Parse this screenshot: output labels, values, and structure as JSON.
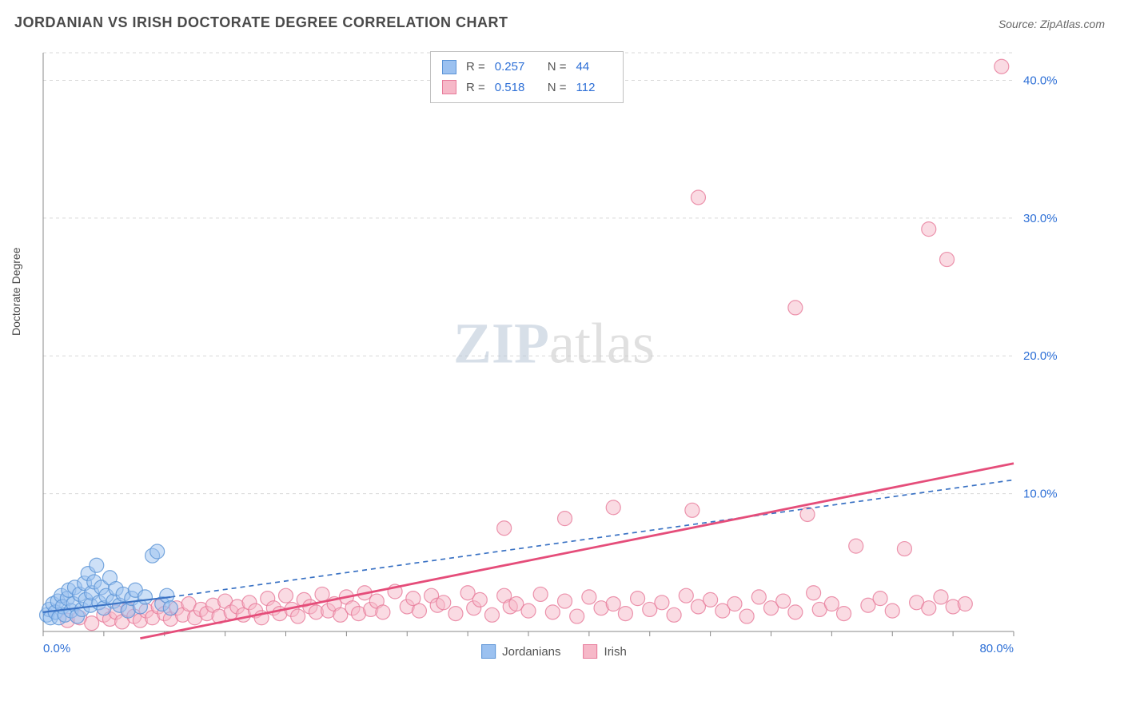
{
  "title": "JORDANIAN VS IRISH DOCTORATE DEGREE CORRELATION CHART",
  "source_label": "Source:",
  "source_value": "ZipAtlas.com",
  "y_axis_label": "Doctorate Degree",
  "watermark_zip": "ZIP",
  "watermark_atlas": "atlas",
  "chart": {
    "type": "scatter",
    "xlim": [
      0,
      80
    ],
    "ylim": [
      0,
      42
    ],
    "x_ticks": [
      0,
      80
    ],
    "x_tick_labels": [
      "0.0%",
      "80.0%"
    ],
    "y_ticks": [
      10,
      20,
      30,
      40
    ],
    "y_tick_labels": [
      "10.0%",
      "20.0%",
      "30.0%",
      "40.0%"
    ],
    "grid_color": "#d8d8d8",
    "grid_dash": "4,4",
    "axis_color": "#888888",
    "background_color": "#ffffff",
    "tick_mark_color": "#888888",
    "x_minor_tick_step": 5,
    "marker_radius": 9,
    "marker_opacity": 0.5,
    "label_color": "#2d6fd6",
    "label_fontsize": 15
  },
  "series": [
    {
      "name": "Jordanians",
      "color_fill": "#9bc1f0",
      "color_stroke": "#5a93d6",
      "R": "0.257",
      "N": "44",
      "trend": {
        "x1": 0,
        "y1": 1.4,
        "x2": 10.5,
        "y2": 2.5,
        "dash_x2": 80,
        "dash_y2": 11.0,
        "stroke": "#3a72c4",
        "width": 2.2,
        "dash": "6,5"
      },
      "points": [
        [
          0.3,
          1.2
        ],
        [
          0.5,
          1.6
        ],
        [
          0.6,
          1.0
        ],
        [
          0.8,
          2.0
        ],
        [
          1.0,
          1.4
        ],
        [
          1.2,
          2.2
        ],
        [
          1.3,
          1.0
        ],
        [
          1.5,
          2.6
        ],
        [
          1.6,
          1.8
        ],
        [
          1.8,
          1.2
        ],
        [
          2.0,
          2.4
        ],
        [
          2.1,
          3.0
        ],
        [
          2.3,
          1.5
        ],
        [
          2.5,
          2.0
        ],
        [
          2.6,
          3.2
        ],
        [
          2.8,
          1.1
        ],
        [
          3.0,
          2.7
        ],
        [
          3.2,
          1.6
        ],
        [
          3.4,
          3.5
        ],
        [
          3.5,
          2.3
        ],
        [
          3.7,
          4.2
        ],
        [
          3.9,
          1.9
        ],
        [
          4.0,
          2.8
        ],
        [
          4.2,
          3.6
        ],
        [
          4.4,
          4.8
        ],
        [
          4.6,
          2.1
        ],
        [
          4.8,
          3.2
        ],
        [
          5.0,
          1.7
        ],
        [
          5.2,
          2.6
        ],
        [
          5.5,
          3.9
        ],
        [
          5.8,
          2.2
        ],
        [
          6.0,
          3.1
        ],
        [
          6.3,
          1.9
        ],
        [
          6.6,
          2.7
        ],
        [
          7.0,
          1.5
        ],
        [
          7.3,
          2.4
        ],
        [
          7.6,
          3.0
        ],
        [
          8.0,
          1.8
        ],
        [
          8.4,
          2.5
        ],
        [
          9.0,
          5.5
        ],
        [
          9.4,
          5.8
        ],
        [
          9.8,
          2.0
        ],
        [
          10.2,
          2.6
        ],
        [
          10.5,
          1.7
        ]
      ]
    },
    {
      "name": "Irish",
      "color_fill": "#f6b8c8",
      "color_stroke": "#e77a9a",
      "R": "0.518",
      "N": "112",
      "trend": {
        "x1": 8,
        "y1": -0.5,
        "x2": 80,
        "y2": 12.2,
        "stroke": "#e54d7a",
        "width": 2.8
      },
      "points": [
        [
          2,
          0.8
        ],
        [
          3,
          1.0
        ],
        [
          4,
          0.6
        ],
        [
          5,
          1.2
        ],
        [
          5.5,
          0.9
        ],
        [
          6,
          1.4
        ],
        [
          6.5,
          0.7
        ],
        [
          7,
          1.6
        ],
        [
          7.5,
          1.1
        ],
        [
          8,
          0.8
        ],
        [
          8.5,
          1.5
        ],
        [
          9,
          1.0
        ],
        [
          9.5,
          1.8
        ],
        [
          10,
          1.3
        ],
        [
          10.5,
          0.9
        ],
        [
          11,
          1.7
        ],
        [
          11.5,
          1.2
        ],
        [
          12,
          2.0
        ],
        [
          12.5,
          1.0
        ],
        [
          13,
          1.6
        ],
        [
          13.5,
          1.3
        ],
        [
          14,
          1.9
        ],
        [
          14.5,
          1.1
        ],
        [
          15,
          2.2
        ],
        [
          15.5,
          1.4
        ],
        [
          16,
          1.8
        ],
        [
          16.5,
          1.2
        ],
        [
          17,
          2.1
        ],
        [
          17.5,
          1.5
        ],
        [
          18,
          1.0
        ],
        [
          18.5,
          2.4
        ],
        [
          19,
          1.7
        ],
        [
          19.5,
          1.3
        ],
        [
          20,
          2.6
        ],
        [
          20.5,
          1.6
        ],
        [
          21,
          1.1
        ],
        [
          21.5,
          2.3
        ],
        [
          22,
          1.8
        ],
        [
          22.5,
          1.4
        ],
        [
          23,
          2.7
        ],
        [
          23.5,
          1.5
        ],
        [
          24,
          2.0
        ],
        [
          24.5,
          1.2
        ],
        [
          25,
          2.5
        ],
        [
          25.5,
          1.7
        ],
        [
          26,
          1.3
        ],
        [
          26.5,
          2.8
        ],
        [
          27,
          1.6
        ],
        [
          27.5,
          2.2
        ],
        [
          28,
          1.4
        ],
        [
          29,
          2.9
        ],
        [
          30,
          1.8
        ],
        [
          30.5,
          2.4
        ],
        [
          31,
          1.5
        ],
        [
          32,
          2.6
        ],
        [
          32.5,
          1.9
        ],
        [
          33,
          2.1
        ],
        [
          34,
          1.3
        ],
        [
          35,
          2.8
        ],
        [
          35.5,
          1.7
        ],
        [
          36,
          2.3
        ],
        [
          37,
          1.2
        ],
        [
          38,
          2.6
        ],
        [
          38.5,
          1.8
        ],
        [
          39,
          2.0
        ],
        [
          40,
          1.5
        ],
        [
          41,
          2.7
        ],
        [
          42,
          1.4
        ],
        [
          43,
          2.2
        ],
        [
          44,
          1.1
        ],
        [
          45,
          2.5
        ],
        [
          46,
          1.7
        ],
        [
          47,
          2.0
        ],
        [
          48,
          1.3
        ],
        [
          49,
          2.4
        ],
        [
          50,
          1.6
        ],
        [
          51,
          2.1
        ],
        [
          52,
          1.2
        ],
        [
          53,
          2.6
        ],
        [
          53.5,
          8.8
        ],
        [
          54,
          1.8
        ],
        [
          55,
          2.3
        ],
        [
          56,
          1.5
        ],
        [
          57,
          2.0
        ],
        [
          58,
          1.1
        ],
        [
          59,
          2.5
        ],
        [
          60,
          1.7
        ],
        [
          61,
          2.2
        ],
        [
          62,
          1.4
        ],
        [
          63,
          8.5
        ],
        [
          63.5,
          2.8
        ],
        [
          64,
          1.6
        ],
        [
          65,
          2.0
        ],
        [
          66,
          1.3
        ],
        [
          67,
          6.2
        ],
        [
          68,
          1.9
        ],
        [
          69,
          2.4
        ],
        [
          70,
          1.5
        ],
        [
          71,
          6.0
        ],
        [
          72,
          2.1
        ],
        [
          73,
          1.7
        ],
        [
          74,
          2.5
        ],
        [
          75,
          1.8
        ],
        [
          76,
          2.0
        ],
        [
          54,
          31.5
        ],
        [
          62,
          23.5
        ],
        [
          73,
          29.2
        ],
        [
          74.5,
          27.0
        ],
        [
          79,
          41.0
        ],
        [
          47,
          9.0
        ],
        [
          43,
          8.2
        ],
        [
          38,
          7.5
        ]
      ]
    }
  ],
  "legend_top": {
    "R_label": "R =",
    "N_label": "N ="
  },
  "bottom_legend": {
    "items": [
      "Jordanians",
      "Irish"
    ]
  }
}
